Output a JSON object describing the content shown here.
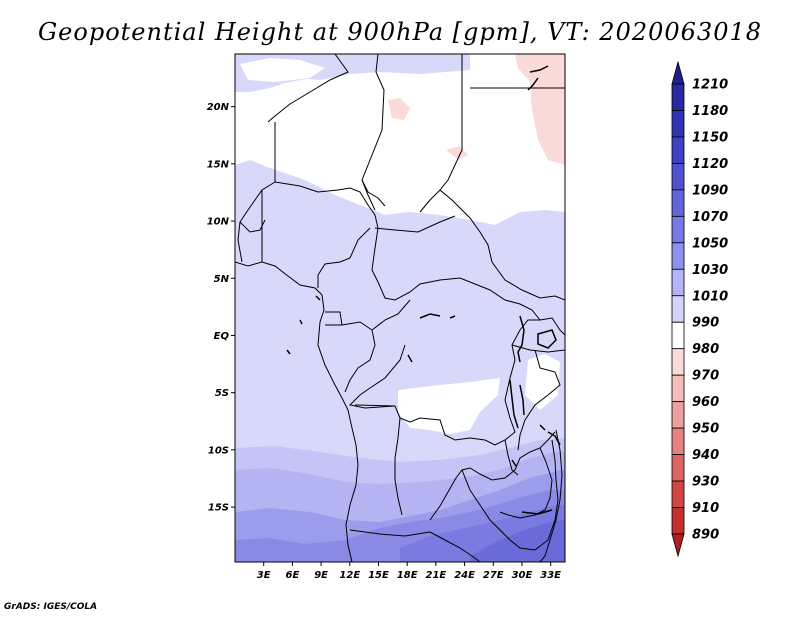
{
  "title": "Geopotential Height at 900hPa [gpm], VT: 2020063018",
  "credit": "GrADS: IGES/COLA",
  "map": {
    "lat_ticks": [
      "20N",
      "15N",
      "10N",
      "5N",
      "EQ",
      "5S",
      "10S",
      "15S"
    ],
    "lon_ticks": [
      "3E",
      "6E",
      "9E",
      "12E",
      "15E",
      "18E",
      "21E",
      "24E",
      "27E",
      "30E",
      "33E"
    ],
    "lat_values": [
      20,
      15,
      10,
      5,
      0,
      -5,
      -10,
      -15
    ],
    "lon_values": [
      3,
      6,
      9,
      12,
      15,
      18,
      21,
      24,
      27,
      30,
      33
    ],
    "lon_range": [
      0,
      34.5
    ],
    "lat_range": [
      -19.8,
      24.6
    ]
  },
  "colorbar": {
    "labels": [
      "1210",
      "1180",
      "1150",
      "1120",
      "1090",
      "1070",
      "1050",
      "1030",
      "1010",
      "990",
      "980",
      "970",
      "960",
      "950",
      "940",
      "930",
      "910",
      "890"
    ],
    "colors": [
      "#1e1e8c",
      "#2828a0",
      "#3232b4",
      "#4040c4",
      "#5050d0",
      "#6464dc",
      "#7878e6",
      "#9090ee",
      "#b4b4f6",
      "#d4d4fa",
      "#ffffff",
      "#fbdada",
      "#f5bdbd",
      "#eea0a0",
      "#e68282",
      "#dc6464",
      "#d04646",
      "#c23030",
      "#b01e1e"
    ]
  }
}
